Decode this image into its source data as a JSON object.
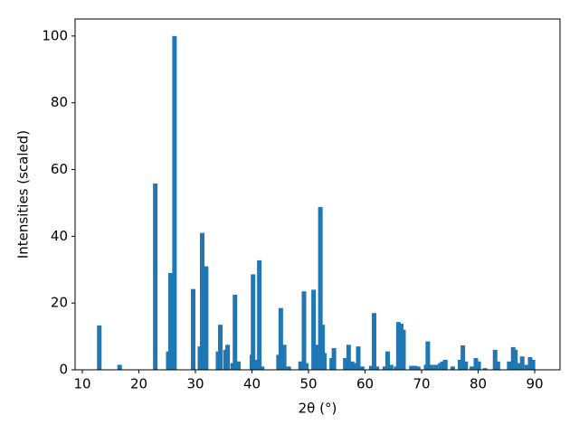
{
  "chart_data": {
    "type": "bar",
    "color": "#1f77b4",
    "x_label": "2θ (°)",
    "y_label": "Intensities (scaled)",
    "x": [
      13.0,
      16.6,
      22.9,
      25.2,
      25.6,
      26.3,
      29.6,
      30.8,
      31.2,
      31.9,
      34.0,
      34.4,
      35.3,
      35.7,
      36.6,
      37.0,
      37.6,
      40.0,
      40.2,
      40.8,
      41.3,
      41.8,
      44.7,
      45.1,
      45.7,
      46.5,
      48.6,
      49.2,
      49.6,
      50.9,
      51.5,
      52.1,
      52.5,
      52.8,
      54.1,
      54.5,
      56.5,
      57.1,
      57.7,
      58.3,
      58.8,
      59.5,
      61.1,
      61.6,
      62.1,
      63.5,
      64.0,
      64.6,
      65.5,
      65.9,
      66.4,
      66.8,
      68.2,
      68.8,
      69.4,
      70.8,
      71.1,
      71.7,
      72.5,
      73.3,
      73.7,
      74.2,
      75.5,
      76.8,
      77.3,
      77.8,
      78.9,
      79.6,
      80.1,
      81.2,
      83.0,
      83.5,
      85.5,
      86.2,
      86.6,
      87.3,
      87.8,
      88.6,
      89.2,
      89.7
    ],
    "values": [
      13.3,
      1.5,
      55.8,
      5.5,
      29,
      100,
      24.2,
      7,
      41,
      31,
      5.5,
      13.5,
      6,
      7.5,
      2,
      22.5,
      2.5,
      4.5,
      28.6,
      3,
      32.8,
      1,
      4.5,
      18.5,
      7.5,
      1,
      2.5,
      23.5,
      2,
      24,
      7.5,
      48.8,
      13.5,
      5,
      3.5,
      6.5,
      3.5,
      7.5,
      2.5,
      2,
      7,
      1,
      1.2,
      17,
      1,
      1,
      5.5,
      1.5,
      1,
      14.3,
      13.8,
      12,
      1.2,
      1.2,
      1,
      1.5,
      8.5,
      1.5,
      1.5,
      2,
      2.5,
      3,
      1,
      3,
      7.3,
      2.5,
      1,
      3.5,
      2.5,
      0.5,
      6,
      2.5,
      2.5,
      6.8,
      6,
      2,
      4,
      1.5,
      3.8,
      3
    ],
    "xlim": [
      8.72,
      94.48
    ],
    "ylim": [
      0,
      105.1
    ],
    "xticks": [
      10,
      20,
      30,
      40,
      50,
      60,
      70,
      80,
      90
    ],
    "yticks": [
      0,
      20,
      40,
      60,
      80,
      100
    ],
    "grid": false
  }
}
